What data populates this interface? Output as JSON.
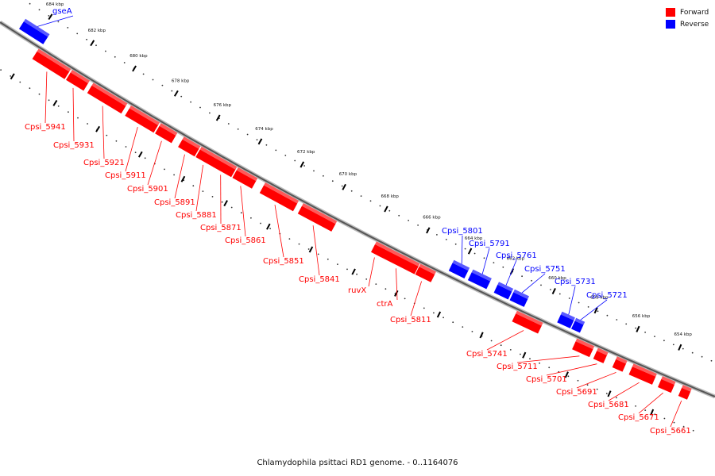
{
  "legend": [
    {
      "label": "Forward",
      "color": "#ff0000"
    },
    {
      "label": "Reverse",
      "color": "#0000ff"
    }
  ],
  "caption": "Chlamydophila psittaci RD1 genome. - 0..1164076",
  "colors": {
    "forward": "#ff0000",
    "reverse": "#0000ff",
    "backbone": "#555555"
  },
  "scale": {
    "unit": "kbp",
    "ticks": [
      {
        "kbp": 684,
        "label": "684 kbp"
      },
      {
        "kbp": 682,
        "label": "682 kbp"
      },
      {
        "kbp": 680,
        "label": "680 kbp"
      },
      {
        "kbp": 678,
        "label": "678 kbp"
      },
      {
        "kbp": 676,
        "label": "676 kbp"
      },
      {
        "kbp": 674,
        "label": "674 kbp"
      },
      {
        "kbp": 672,
        "label": "672 kbp"
      },
      {
        "kbp": 670,
        "label": "670 kbp"
      },
      {
        "kbp": 668,
        "label": "668 kbp"
      },
      {
        "kbp": 666,
        "label": "666 kbp"
      },
      {
        "kbp": 664,
        "label": "664 kbp"
      },
      {
        "kbp": 662,
        "label": "662 kbp"
      },
      {
        "kbp": 660,
        "label": "660 kbp"
      },
      {
        "kbp": 658,
        "label": "658 kbp"
      },
      {
        "kbp": 656,
        "label": "656 kbp"
      },
      {
        "kbp": 654,
        "label": "654 kbp"
      }
    ]
  },
  "genes": [
    {
      "label": "gseA",
      "strand": "reverse"
    },
    {
      "label": "Cpsi_5941",
      "strand": "forward"
    },
    {
      "label": "Cpsi_5931",
      "strand": "forward"
    },
    {
      "label": "Cpsi_5921",
      "strand": "forward"
    },
    {
      "label": "Cpsi_5911",
      "strand": "forward"
    },
    {
      "label": "Cpsi_5901",
      "strand": "forward"
    },
    {
      "label": "Cpsi_5891",
      "strand": "forward"
    },
    {
      "label": "Cpsi_5881",
      "strand": "forward"
    },
    {
      "label": "Cpsi_5871",
      "strand": "forward"
    },
    {
      "label": "Cpsi_5861",
      "strand": "forward"
    },
    {
      "label": "Cpsi_5851",
      "strand": "forward"
    },
    {
      "label": "Cpsi_5841",
      "strand": "forward"
    },
    {
      "label": "ruvX",
      "strand": "forward"
    },
    {
      "label": "ctrA",
      "strand": "forward"
    },
    {
      "label": "Cpsi_5811",
      "strand": "forward"
    },
    {
      "label": "Cpsi_5801",
      "strand": "reverse"
    },
    {
      "label": "Cpsi_5791",
      "strand": "reverse"
    },
    {
      "label": "Cpsi_5761",
      "strand": "reverse"
    },
    {
      "label": "Cpsi_5751",
      "strand": "reverse"
    },
    {
      "label": "Cpsi_5741",
      "strand": "forward"
    },
    {
      "label": "Cpsi_5731",
      "strand": "reverse"
    },
    {
      "label": "Cpsi_5721",
      "strand": "reverse"
    },
    {
      "label": "Cpsi_5711",
      "strand": "forward"
    },
    {
      "label": "Cpsi_5701",
      "strand": "forward"
    },
    {
      "label": "Cpsi_5691",
      "strand": "forward"
    },
    {
      "label": "Cpsi_5681",
      "strand": "forward"
    },
    {
      "label": "Cpsi_5671",
      "strand": "forward"
    },
    {
      "label": "Cpsi_5661",
      "strand": "forward"
    }
  ]
}
